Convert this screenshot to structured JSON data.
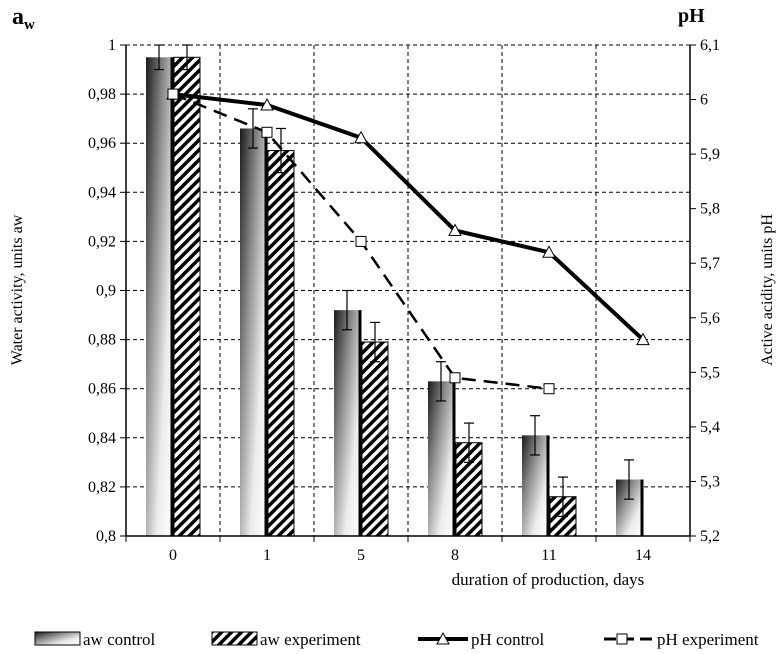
{
  "chart_data": {
    "type": "bar",
    "categories": [
      "0",
      "1",
      "5",
      "8",
      "11",
      "14"
    ],
    "xlabel": "duration of production, days",
    "ylabel_left": "Water activity, units aw",
    "ylabel_right": "Active acidity, units pH",
    "left_axis_title_main": "a",
    "left_axis_title_sub": "w",
    "right_axis_title": "pH",
    "ylim_left": [
      0.8,
      1.0
    ],
    "ylim_right": [
      5.2,
      6.1
    ],
    "left_ticks": [
      "0,8",
      "0,82",
      "0,84",
      "0,86",
      "0,88",
      "0,9",
      "0,92",
      "0,94",
      "0,96",
      "0,98",
      "1"
    ],
    "right_ticks": [
      "5,2",
      "5,3",
      "5,4",
      "5,5",
      "5,6",
      "5,7",
      "5,8",
      "5,9",
      "6",
      "6,1"
    ],
    "grid": true,
    "legend_position": "bottom",
    "bar_series": [
      {
        "name": "aw control",
        "values": [
          0.995,
          0.966,
          0.892,
          0.863,
          0.841,
          0.823
        ],
        "errors": [
          0.005,
          0.008,
          0.008,
          0.008,
          0.008,
          0.008
        ]
      },
      {
        "name": "aw experiment",
        "values": [
          0.995,
          0.957,
          0.879,
          0.838,
          0.816,
          null
        ],
        "errors": [
          0.005,
          0.009,
          0.008,
          0.008,
          0.008,
          null
        ]
      }
    ],
    "line_series": [
      {
        "name": "pH control",
        "values": [
          6.01,
          5.99,
          5.93,
          5.76,
          5.72,
          5.56
        ],
        "style": "solid",
        "marker": "triangle"
      },
      {
        "name": "pH experiment",
        "values": [
          6.01,
          5.94,
          5.74,
          5.49,
          5.47,
          null
        ],
        "style": "dashed",
        "marker": "square"
      }
    ]
  }
}
